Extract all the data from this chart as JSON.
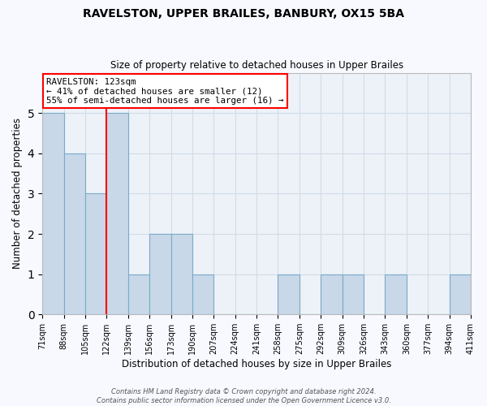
{
  "title": "RAVELSTON, UPPER BRAILES, BANBURY, OX15 5BA",
  "subtitle": "Size of property relative to detached houses in Upper Brailes",
  "xlabel": "Distribution of detached houses by size in Upper Brailes",
  "ylabel": "Number of detached properties",
  "bin_labels": [
    "71sqm",
    "88sqm",
    "105sqm",
    "122sqm",
    "139sqm",
    "156sqm",
    "173sqm",
    "190sqm",
    "207sqm",
    "224sqm",
    "241sqm",
    "258sqm",
    "275sqm",
    "292sqm",
    "309sqm",
    "326sqm",
    "343sqm",
    "360sqm",
    "377sqm",
    "394sqm",
    "411sqm"
  ],
  "bin_edges": [
    71,
    88,
    105,
    122,
    139,
    156,
    173,
    190,
    207,
    224,
    241,
    258,
    275,
    292,
    309,
    326,
    343,
    360,
    377,
    394,
    411
  ],
  "bar_heights": [
    5,
    4,
    3,
    5,
    1,
    2,
    2,
    1,
    0,
    0,
    0,
    1,
    0,
    1,
    1,
    0,
    1,
    0,
    0,
    1
  ],
  "bar_color": "#c8d8e8",
  "bar_edgecolor": "#7aaac8",
  "grid_color": "#d0dce8",
  "vline_x": 122,
  "vline_color": "red",
  "annotation_title": "RAVELSTON: 123sqm",
  "annotation_line1": "← 41% of detached houses are smaller (12)",
  "annotation_line2": "55% of semi-detached houses are larger (16) →",
  "annotation_box_color": "red",
  "ylim": [
    0,
    6
  ],
  "yticks": [
    0,
    1,
    2,
    3,
    4,
    5,
    6
  ],
  "footer_line1": "Contains HM Land Registry data © Crown copyright and database right 2024.",
  "footer_line2": "Contains public sector information licensed under the Open Government Licence v3.0.",
  "bg_color": "#f8f9ff",
  "plot_bg_color": "#edf2f8"
}
